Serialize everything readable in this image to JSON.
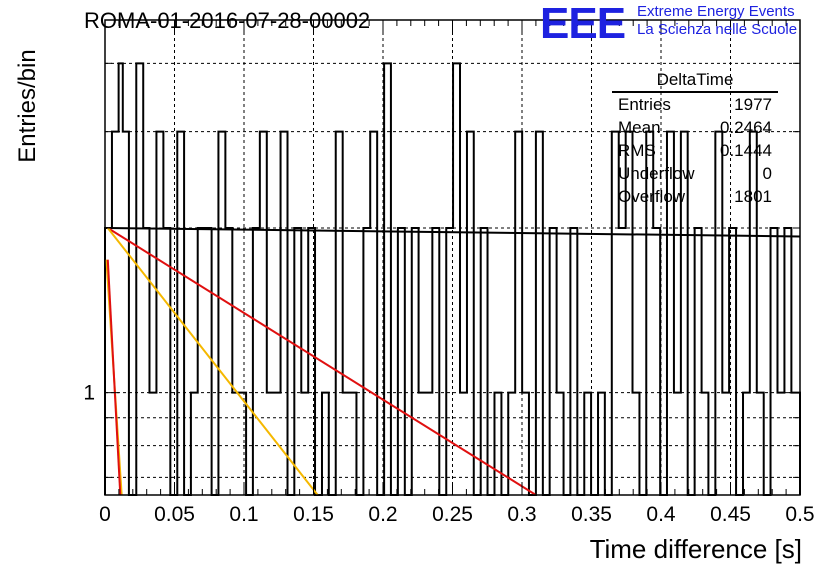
{
  "title": "ROMA-01-2016-07-28-00002",
  "logo": {
    "mark": "EEE",
    "line1": "Extreme Energy Events",
    "line2": "La Scienza nelle Scuole",
    "color": "#1e22e0"
  },
  "stats": {
    "name": "DeltaTime",
    "rows": [
      {
        "label": "Entries",
        "value": "1977"
      },
      {
        "label": "Mean",
        "value": "0.2464"
      },
      {
        "label": "RMS",
        "value": "0.1444"
      },
      {
        "label": "Underflow",
        "value": "0"
      },
      {
        "label": "Overflow",
        "value": "1801"
      }
    ]
  },
  "chart_data": {
    "type": "histogram",
    "title": "ROMA-01-2016-07-28-00002",
    "xlabel": "Time difference [s]",
    "ylabel": "Entries/bin",
    "xlim": [
      0,
      0.5
    ],
    "ylim": [
      0.65,
      4.8
    ],
    "log_y": true,
    "grid": true,
    "xticks": [
      "0",
      "0.05",
      "0.1",
      "0.15",
      "0.2",
      "0.25",
      "0.3",
      "0.35",
      "0.4",
      "0.45",
      "0.5"
    ],
    "yticks": [
      "1"
    ],
    "bin_edges": [
      0,
      0.005,
      0.0098,
      0.0128,
      0.0172,
      0.0225,
      0.0275,
      0.032,
      0.037,
      0.042,
      0.047,
      0.052,
      0.0569,
      0.0618,
      0.0667,
      0.0717,
      0.0767,
      0.0816,
      0.0866,
      0.0916,
      0.0966,
      0.1015,
      0.1064,
      0.1114,
      0.1164,
      0.1213,
      0.1263,
      0.1313,
      0.1362,
      0.1412,
      0.1462,
      0.1511,
      0.1561,
      0.161,
      0.166,
      0.171,
      0.176,
      0.1809,
      0.1859,
      0.1908,
      0.1958,
      0.2008,
      0.2057,
      0.2107,
      0.2157,
      0.2207,
      0.2256,
      0.2306,
      0.2355,
      0.2405,
      0.2455,
      0.2504,
      0.2554,
      0.2604,
      0.2653,
      0.2703,
      0.2752,
      0.2802,
      0.2852,
      0.2901,
      0.2951,
      0.3001,
      0.305,
      0.31,
      0.315,
      0.3199,
      0.3249,
      0.3299,
      0.3348,
      0.3398,
      0.3448,
      0.3497,
      0.3547,
      0.3596,
      0.3646,
      0.3696,
      0.3746,
      0.3795,
      0.3845,
      0.3894,
      0.3944,
      0.3994,
      0.4043,
      0.4093,
      0.4143,
      0.4192,
      0.4242,
      0.4292,
      0.4341,
      0.4391,
      0.4441,
      0.449,
      0.454,
      0.459,
      0.4639,
      0.4689,
      0.4739,
      0.4788,
      0.4838,
      0.4888,
      0.4938,
      0.5
    ],
    "bin_values": [
      2,
      3,
      4,
      3,
      0.5,
      4,
      2,
      1,
      3,
      2,
      0.5,
      3,
      0.5,
      1,
      2,
      2,
      0.5,
      3,
      2,
      1,
      1,
      0.5,
      2,
      3,
      1,
      1,
      3,
      0.5,
      2,
      1,
      2,
      0.5,
      1,
      0.5,
      3,
      1,
      1,
      0.5,
      2,
      3,
      0.5,
      4,
      0.5,
      2,
      0.5,
      2,
      1,
      1,
      2,
      0.5,
      2,
      4,
      1,
      3,
      0.5,
      2,
      0.5,
      1,
      0.5,
      1,
      3,
      1,
      0.5,
      3,
      0.5,
      2,
      1,
      0.5,
      2,
      0.5,
      1,
      0.5,
      1,
      0.5,
      3,
      2,
      3,
      1,
      0.5,
      3,
      2,
      0.5,
      3,
      1,
      3,
      0.5,
      2,
      1,
      0.5,
      3,
      1,
      2,
      0.5,
      1,
      3,
      1,
      0.5,
      2,
      1,
      2,
      1
    ],
    "fits": [
      {
        "color": "#000000",
        "points": [
          [
            0.002,
            2.0
          ],
          [
            0.5,
            1.93
          ]
        ]
      },
      {
        "color": "#e01010",
        "points": [
          [
            0.002,
            2.0
          ],
          [
            0.31,
            0.65
          ]
        ]
      },
      {
        "color": "#f5b800",
        "points": [
          [
            0.002,
            2.0
          ],
          [
            0.153,
            0.65
          ]
        ]
      },
      {
        "color": "#f5b800",
        "points": [
          [
            0.001,
            1.75
          ],
          [
            0.012,
            0.65
          ]
        ]
      },
      {
        "color": "#e01010",
        "points": [
          [
            0.002,
            1.75
          ],
          [
            0.011,
            0.65
          ]
        ]
      }
    ]
  }
}
